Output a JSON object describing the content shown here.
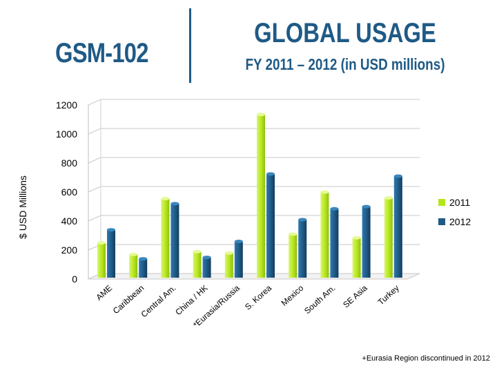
{
  "header": {
    "code": "GSM-102",
    "title": "GLOBAL USAGE",
    "subtitle": "FY 2011 – 2012 (in USD millions)"
  },
  "footnote": "+Eurasia Region discontinued in 2012",
  "chart_data": {
    "type": "bar",
    "title": "",
    "xlabel": "",
    "ylabel": "$ USD Millions",
    "ylim": [
      0,
      1200
    ],
    "yticks": [
      0,
      200,
      400,
      600,
      800,
      1000,
      1200
    ],
    "grid": true,
    "legend_position": "right",
    "categories": [
      "AME",
      "Caribbean",
      "Central Am.",
      "China / HK",
      "*Eurasia/Russia",
      "S. Korea",
      "Mexico",
      "South Am.",
      "SE Asia",
      "Turkey"
    ],
    "series": [
      {
        "name": "2011",
        "color": "#b5e61d",
        "values": [
          240,
          160,
          545,
          180,
          170,
          1125,
          300,
          590,
          275,
          550
        ]
      },
      {
        "name": "2012",
        "color": "#1f5a85",
        "values": [
          330,
          130,
          510,
          140,
          250,
          715,
          400,
          475,
          490,
          700
        ]
      }
    ]
  }
}
